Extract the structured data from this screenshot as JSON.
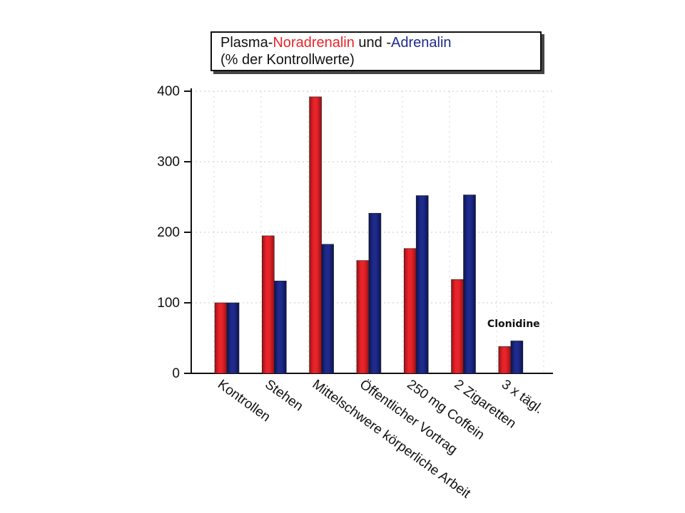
{
  "title": {
    "part1": "Plasma-",
    "part2": "Noradrenalin",
    "part3": " und -",
    "part4": "Adrenalin",
    "line2": "(% der Kontrollwerte)"
  },
  "colors": {
    "noradrenalin": "#e8242a",
    "adrenalin": "#1e2a8c",
    "axis": "#111111"
  },
  "chart_data": {
    "type": "bar",
    "categories": [
      "Kontrollen",
      "Stehen",
      "Mittelschwere körperliche Arbeit",
      "Öffentlicher Vortrag",
      "250 mg Coffein",
      "2 Zigaretten",
      "3 x tägl."
    ],
    "series": [
      {
        "name": "Noradrenalin",
        "values": [
          100,
          195,
          392,
          160,
          177,
          133,
          38
        ]
      },
      {
        "name": "Adrenalin",
        "values": [
          100,
          131,
          183,
          227,
          252,
          253,
          46
        ]
      }
    ],
    "ylim": [
      0,
      400
    ],
    "yticks": [
      0,
      100,
      200,
      300,
      400
    ],
    "annotations": [
      {
        "text": "Clonidine",
        "category": "3 x tägl."
      }
    ],
    "grid": true
  }
}
